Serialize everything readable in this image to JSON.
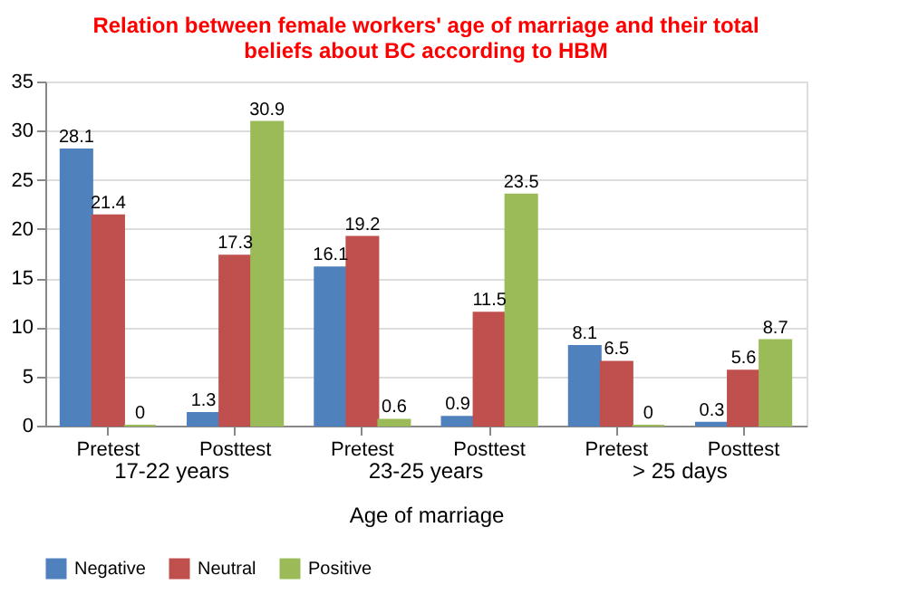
{
  "chart_data": {
    "type": "bar",
    "title": [
      "Relation between female workers' age of marriage and their total",
      "beliefs about BC according to HBM"
    ],
    "categories": [
      "Pretest",
      "Posttest",
      "Pretest",
      "Posttest",
      "Pretest",
      "Posttest"
    ],
    "annotations": [
      "17-22 years",
      "23-25 years",
      "> 25 days"
    ],
    "xlabel": "Age of marriage",
    "series": [
      {
        "name": "Negative",
        "color": "#4f81bd",
        "values": [
          28.1,
          1.3,
          16.1,
          0.9,
          8.1,
          0.3
        ]
      },
      {
        "name": "Neutral",
        "color": "#c0504d",
        "values": [
          21.4,
          17.3,
          19.2,
          11.5,
          6.5,
          5.6
        ]
      },
      {
        "name": "Positive",
        "color": "#9bbb59",
        "values": [
          0,
          30.9,
          0.6,
          23.5,
          0,
          8.7
        ]
      }
    ],
    "ylim": [
      0,
      35
    ],
    "yticks": [
      0,
      5,
      10,
      15,
      20,
      25,
      30,
      35
    ],
    "grid": "y",
    "legend": "bottom",
    "data_labels": true
  }
}
